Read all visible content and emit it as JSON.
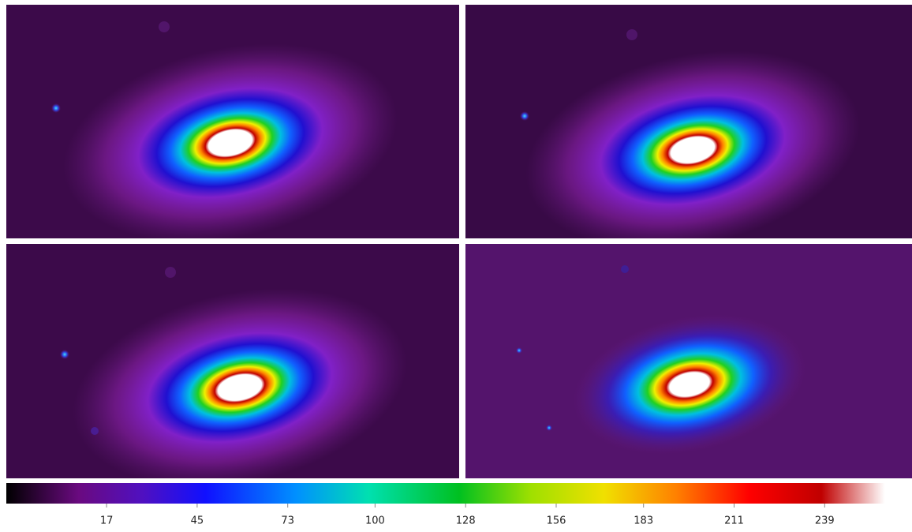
{
  "colorbar": {
    "range": [
      -14,
      266
    ],
    "ticks": [
      17,
      45,
      73,
      100,
      128,
      156,
      183,
      211,
      239
    ]
  }
}
